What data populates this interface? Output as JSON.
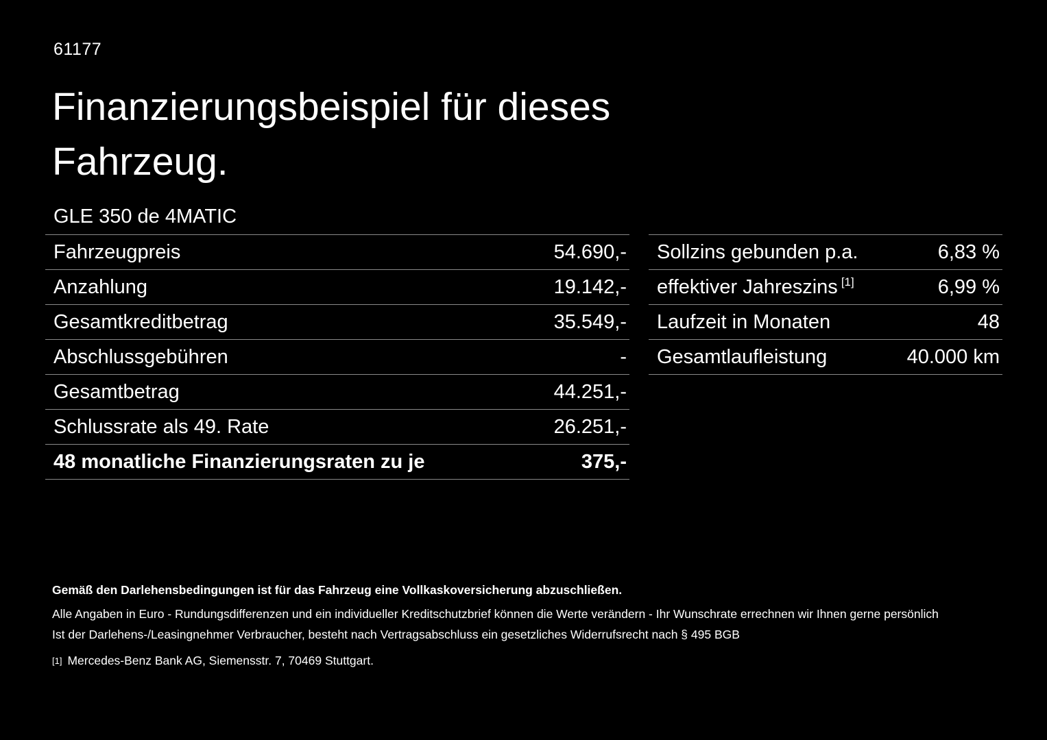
{
  "page": {
    "doc_number": "61177",
    "title_line1": "Finanzierungsbeispiel für dieses",
    "title_line2": "Fahrzeug.",
    "vehicle_model": "GLE 350 de 4MATIC"
  },
  "left_table": {
    "rows": [
      {
        "label": "Fahrzeugpreis",
        "value": "54.690,-"
      },
      {
        "label": "Anzahlung",
        "value": "19.142,-"
      },
      {
        "label": "Gesamtkreditbetrag",
        "value": "35.549,-"
      },
      {
        "label": "Abschlussgebühren",
        "value": "-"
      },
      {
        "label": "Gesamtbetrag",
        "value": "44.251,-"
      },
      {
        "label": "Schlussrate als 49. Rate",
        "value": "26.251,-"
      },
      {
        "label": "48 monatliche Finanzierungsraten zu je",
        "value": "375,-"
      }
    ]
  },
  "right_table": {
    "rows": [
      {
        "label": "Sollzins gebunden p.a.",
        "value": "6,83 %"
      },
      {
        "label": "effektiver Jahreszins",
        "superscript": "[1]",
        "value": "6,99 %"
      },
      {
        "label": "Laufzeit in Monaten",
        "value": "48"
      },
      {
        "label": "Gesamtlaufleistung",
        "value": "40.000 km"
      }
    ]
  },
  "footnotes": {
    "insurance_bold": "Gemäß den Darlehensbedingungen ist für das Fahrzeug eine Vollkaskoversicherung abzuschließen.",
    "disclaimer_line1": "Alle Angaben in Euro - Rundungsdifferenzen und ein individueller Kreditschutzbrief können die Werte verändern - Ihr Wunschrate errechnen wir Ihnen gerne persönlich",
    "disclaimer_line2": "Ist der Darlehens-/Leasingnehmer Verbraucher, besteht nach Vertragsabschluss ein gesetzliches Widerrufsrecht nach § 495 BGB",
    "reference_marker": "[1]",
    "reference_text": "Mercedes-Benz Bank AG, Siemensstr. 7, 70469 Stuttgart."
  },
  "colors": {
    "background": "#000000",
    "text": "#ffffff",
    "divider": "#8a8a8a"
  }
}
